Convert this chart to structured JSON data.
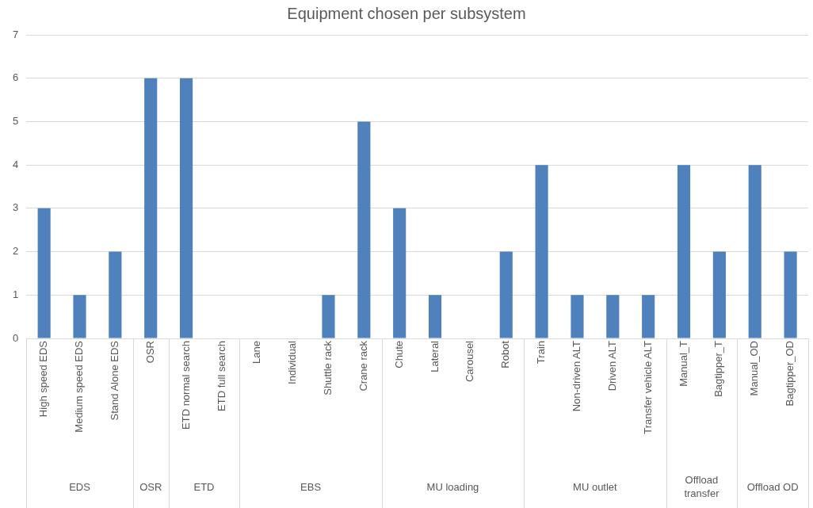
{
  "chart_data": {
    "type": "bar",
    "title": "Equipment chosen per subsystem",
    "categories": [
      "High speed EDS",
      "Medium speed EDS",
      "Stand Alone EDS",
      "OSR",
      "ETD normal search",
      "ETD full search",
      "Lane",
      "Individual",
      "Shuttle rack",
      "Crane rack",
      "Chute",
      "Lateral",
      "Carousel",
      "Robot",
      "Train",
      "Non-driven ALT",
      "Driven ALT",
      "Transfer vehicle ALT",
      "Manual_T",
      "Bagtipper_T",
      "Manual_OD",
      "Bagtipper_OD"
    ],
    "values": [
      3,
      1,
      2,
      6,
      6,
      0,
      0,
      0,
      1,
      5,
      3,
      1,
      0,
      2,
      4,
      1,
      1,
      1,
      4,
      2,
      4,
      2
    ],
    "color": "#4f81bd",
    "ylim": [
      0,
      7
    ],
    "yticks": [
      0,
      1,
      2,
      3,
      4,
      5,
      6,
      7
    ],
    "grid": "y",
    "legend": false,
    "annotations": [
      "EDS",
      "OSR",
      "ETD",
      "EBS",
      "MU loading",
      "MU outlet",
      "Offload transfer",
      "Offload OD"
    ]
  }
}
